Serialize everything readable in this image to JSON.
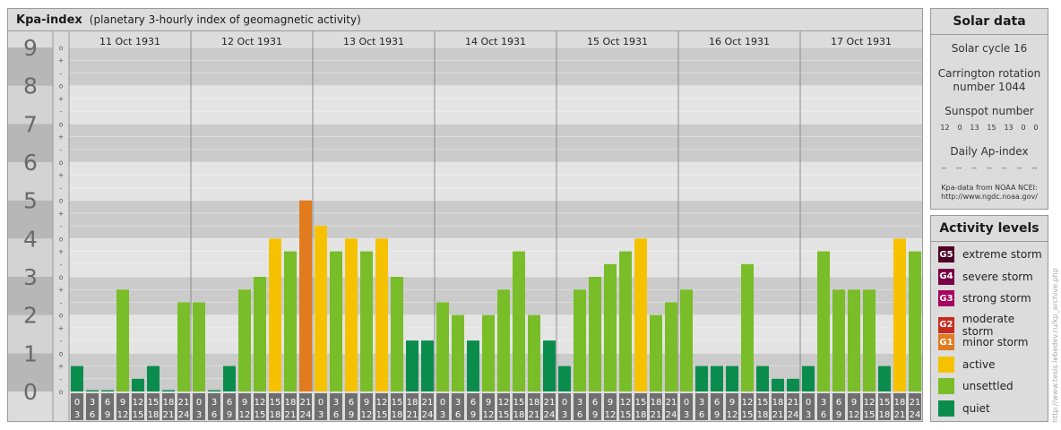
{
  "header": {
    "title": "Kpa-index",
    "subtitle": "(planetary 3-hourly index of geomagnetic activity)"
  },
  "solar": {
    "title": "Solar data",
    "cycle": "Solar cycle 16",
    "carrington_line1": "Carrington rotation",
    "carrington_line2": "number 1044",
    "sunspot_label": "Sunspot number",
    "sunspot_values": [
      "12",
      "0",
      "13",
      "15",
      "13",
      "0",
      "0"
    ],
    "ap_label": "Daily Ap-index",
    "ap_values": [
      "--",
      "--",
      "--",
      "--",
      "--",
      "--",
      "--"
    ],
    "credit_line1": "Kpa-data from NOAA NCEI:",
    "credit_line2": "http://www.ngdc.noaa.gov/"
  },
  "levels": {
    "title": "Activity levels",
    "items": [
      {
        "badge": "G5",
        "label": "extreme storm",
        "color": "#4d0024"
      },
      {
        "badge": "G4",
        "label": "severe storm",
        "color": "#7a0046"
      },
      {
        "badge": "G3",
        "label": "strong storm",
        "color": "#a8005e"
      },
      {
        "badge": "G2",
        "label": "moderate storm",
        "color": "#c72a1c"
      },
      {
        "badge": "G1",
        "label": "minor storm",
        "color": "#e27b1e"
      },
      {
        "badge": "",
        "label": "active",
        "color": "#f6c200"
      },
      {
        "badge": "",
        "label": "unsettled",
        "color": "#79bd28"
      },
      {
        "badge": "",
        "label": "quiet",
        "color": "#0a8d4c"
      }
    ]
  },
  "watermark": "http://www.tesis.lebedev.ru/kp_archive.php",
  "chart_data": {
    "type": "bar",
    "title": "Kpa-index",
    "y_major_labels": [
      "0",
      "1",
      "2",
      "3",
      "4",
      "5",
      "6",
      "7",
      "8",
      "9"
    ],
    "y_minor_labels": [
      "o",
      "+",
      "-",
      "o",
      "+",
      "-",
      "o",
      "+",
      "-",
      "o",
      "+",
      "-",
      "o",
      "+",
      "-",
      "o",
      "+",
      "-",
      "o",
      "+",
      "-",
      "o",
      "+",
      "-",
      "o",
      "+",
      "-",
      "o"
    ],
    "ylim": [
      0,
      9
    ],
    "days": [
      "11 Oct 1931",
      "12 Oct 1931",
      "13 Oct 1931",
      "14 Oct 1931",
      "15 Oct 1931",
      "16 Oct 1931",
      "17 Oct 1931"
    ],
    "interval_start": [
      "0",
      "3",
      "6",
      "9",
      "12",
      "15",
      "18",
      "21"
    ],
    "interval_end": [
      "3",
      "6",
      "9",
      "12",
      "15",
      "18",
      "21",
      "24"
    ],
    "series": [
      {
        "values": [
          0.667,
          0.0,
          0.0,
          2.667,
          0.333,
          0.667,
          0.0,
          2.333,
          2.333,
          0.0,
          0.667,
          2.667,
          3.0,
          4.0,
          3.667,
          5.0,
          4.333,
          3.667,
          4.0,
          3.667,
          4.0,
          3.0,
          1.333,
          1.333,
          2.333,
          2.0,
          1.333,
          2.0,
          2.667,
          3.667,
          2.0,
          1.333,
          0.667,
          2.667,
          3.0,
          3.333,
          3.667,
          4.0,
          2.0,
          2.333,
          2.667,
          0.667,
          0.667,
          0.667,
          3.333,
          0.667,
          0.333,
          0.333,
          0.667,
          3.667,
          2.667,
          2.667,
          2.667,
          0.667,
          4.0,
          3.667
        ]
      }
    ]
  }
}
